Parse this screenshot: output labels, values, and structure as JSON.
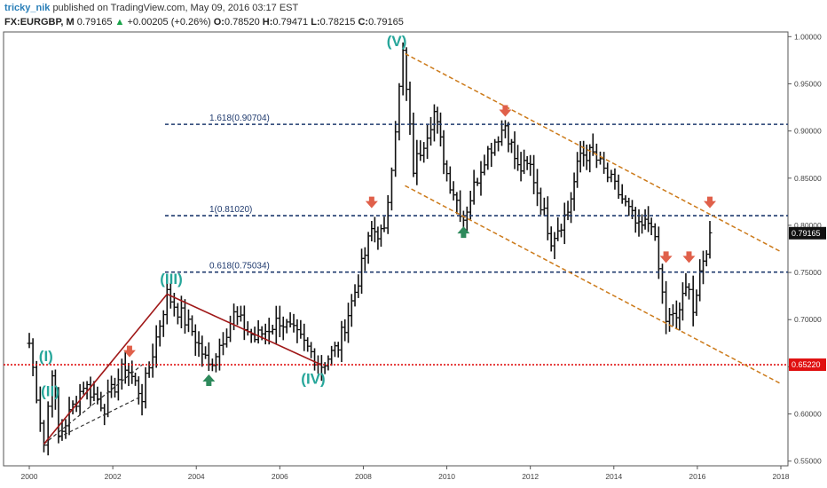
{
  "header": {
    "user": "tricky_nik",
    "published": "published on TradingView.com, May 09, 2016 03:17 EST",
    "symbol": "FX:EURGBP, M",
    "last": "0.79165",
    "change": "+0.00205 (+0.26%)",
    "o_label": "O:",
    "o": "0.78520",
    "h_label": "H:",
    "h": "0.79471",
    "l_label": "L:",
    "l": "0.78215",
    "c_label": "C:",
    "c": "0.79165"
  },
  "chart_data": {
    "type": "ohlc",
    "colors": {
      "bars": "#111111",
      "fib": "#1f3a6e",
      "channel": "#cc7a1a",
      "trend": "#a01818",
      "support": "#e01010",
      "waves": "#26a69a",
      "down_arrow": "#e0604a",
      "up_arrow": "#2e8a5c"
    },
    "x_ticks": [
      "2000",
      "2002",
      "2004",
      "2006",
      "2008",
      "2010",
      "2012",
      "2014",
      "2016",
      "2018"
    ],
    "y_ticks": [
      "1.00000",
      "0.95000",
      "0.90000",
      "0.85000",
      "0.80000",
      "0.75000",
      "0.70000",
      "0.65000",
      "0.60000",
      "0.55000"
    ],
    "ylim": [
      0.545,
      1.005
    ],
    "fib_levels": [
      {
        "label": "1.618(0.90704)",
        "value": 0.90704
      },
      {
        "label": "1(0.81020)",
        "value": 0.8102
      },
      {
        "label": "0.618(0.75034)",
        "value": 0.75034
      }
    ],
    "support": {
      "value": 0.6522,
      "label": "0.65220"
    },
    "price_tag": {
      "value": 0.79165,
      "label": "0.79165"
    },
    "wave_labels": [
      {
        "label": "(I)",
        "year": 2000.4,
        "price": 0.656
      },
      {
        "label": "(II)",
        "year": 2000.5,
        "price": 0.619
      },
      {
        "label": "(III)",
        "year": 2003.4,
        "price": 0.738
      },
      {
        "label": "(IV)",
        "year": 2006.8,
        "price": 0.632
      },
      {
        "label": "(V)",
        "year": 2008.8,
        "price": 0.99
      }
    ],
    "trend_lines": [
      {
        "from": [
          2000.35,
          0.568
        ],
        "to": [
          2003.3,
          0.727
        ]
      },
      {
        "from": [
          2003.3,
          0.727
        ],
        "to": [
          2007.0,
          0.652
        ]
      }
    ],
    "triangle_lines": [
      {
        "from": [
          2000.35,
          0.568
        ],
        "to": [
          2002.7,
          0.652
        ]
      },
      {
        "from": [
          2000.7,
          0.575
        ],
        "to": [
          2002.7,
          0.619
        ]
      }
    ],
    "channel": [
      {
        "from": [
          2009.0,
          0.982
        ],
        "to": [
          2018.0,
          0.772
        ]
      },
      {
        "from": [
          2009.0,
          0.842
        ],
        "to": [
          2018.0,
          0.632
        ]
      }
    ],
    "down_arrows": [
      {
        "year": 2002.4,
        "price": 0.662
      },
      {
        "year": 2008.2,
        "price": 0.82
      },
      {
        "year": 2011.4,
        "price": 0.917
      },
      {
        "year": 2015.25,
        "price": 0.762
      },
      {
        "year": 2015.8,
        "price": 0.762
      },
      {
        "year": 2016.3,
        "price": 0.82
      }
    ],
    "up_arrows": [
      {
        "year": 2004.3,
        "price": 0.64
      },
      {
        "year": 2010.4,
        "price": 0.797
      }
    ],
    "anchors": [
      [
        2000.0,
        0.675
      ],
      [
        2000.35,
        0.568
      ],
      [
        2000.55,
        0.648
      ],
      [
        2000.7,
        0.575
      ],
      [
        2001.3,
        0.632
      ],
      [
        2001.8,
        0.608
      ],
      [
        2002.3,
        0.652
      ],
      [
        2002.7,
        0.619
      ],
      [
        2003.3,
        0.727
      ],
      [
        2003.9,
        0.688
      ],
      [
        2004.3,
        0.65
      ],
      [
        2004.9,
        0.705
      ],
      [
        2005.4,
        0.68
      ],
      [
        2006.0,
        0.7
      ],
      [
        2006.5,
        0.678
      ],
      [
        2007.0,
        0.652
      ],
      [
        2007.4,
        0.672
      ],
      [
        2007.8,
        0.73
      ],
      [
        2008.2,
        0.795
      ],
      [
        2008.5,
        0.79
      ],
      [
        2008.95,
        0.982
      ],
      [
        2009.2,
        0.86
      ],
      [
        2009.7,
        0.92
      ],
      [
        2010.0,
        0.855
      ],
      [
        2010.4,
        0.808
      ],
      [
        2010.9,
        0.873
      ],
      [
        2011.4,
        0.907
      ],
      [
        2011.7,
        0.86
      ],
      [
        2012.0,
        0.862
      ],
      [
        2012.5,
        0.786
      ],
      [
        2012.9,
        0.815
      ],
      [
        2013.2,
        0.876
      ],
      [
        2013.5,
        0.875
      ],
      [
        2014.2,
        0.828
      ],
      [
        2014.6,
        0.795
      ],
      [
        2014.9,
        0.806
      ],
      [
        2015.25,
        0.7
      ],
      [
        2015.5,
        0.702
      ],
      [
        2015.8,
        0.74
      ],
      [
        2015.9,
        0.71
      ],
      [
        2016.3,
        0.792
      ]
    ]
  }
}
